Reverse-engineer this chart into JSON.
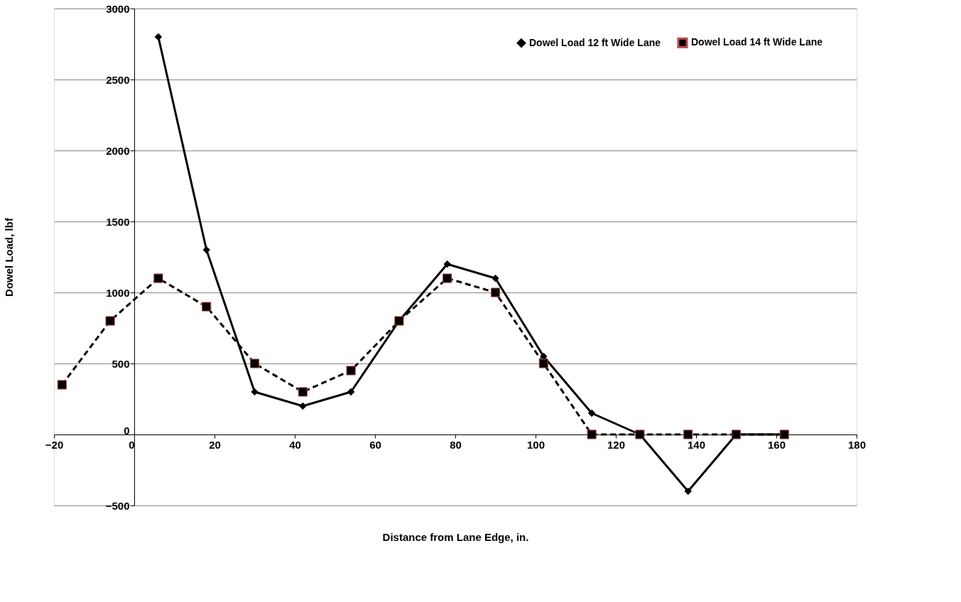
{
  "chart_data": {
    "type": "line",
    "xlabel": "Distance from Lane Edge, in.",
    "ylabel": "Dowel Load, lbf",
    "series": [
      {
        "name": "Dowel Load   12 ft Wide Lane",
        "color": "#000000",
        "marker": "diamond",
        "line_style": "solid",
        "x": [
          6,
          18,
          30,
          42,
          54,
          66,
          78,
          90,
          102,
          114,
          126,
          138,
          150,
          162
        ],
        "values": [
          2800,
          1300,
          300,
          200,
          300,
          800,
          1200,
          1100,
          550,
          150,
          0,
          -400,
          0,
          0
        ]
      },
      {
        "name": "Dowel Load   14 ft Wide Lane",
        "color": "#000000",
        "marker": "square",
        "line_style": "dashed",
        "x": [
          -18,
          -6,
          6,
          18,
          30,
          42,
          54,
          66,
          78,
          90,
          102,
          114,
          126,
          138,
          150,
          162
        ],
        "values": [
          350,
          800,
          1100,
          900,
          500,
          300,
          450,
          800,
          1100,
          1000,
          500,
          0,
          0,
          0,
          0,
          0
        ]
      }
    ],
    "xlim": [
      -20,
      180
    ],
    "xticks": [
      -20,
      0,
      20,
      40,
      60,
      80,
      100,
      120,
      140,
      160,
      180
    ],
    "ylim": [
      -500,
      3000
    ],
    "yticks": [
      -500,
      0,
      500,
      1000,
      1500,
      2000,
      2500,
      3000
    ],
    "grid": "y",
    "legend": "top right"
  }
}
